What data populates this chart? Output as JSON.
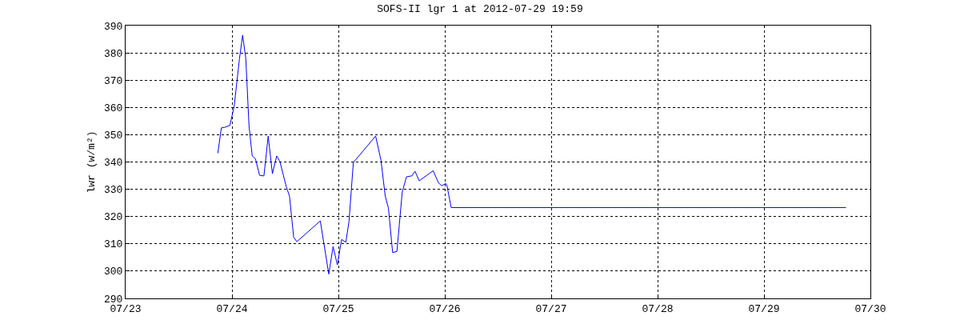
{
  "chart_data": {
    "type": "line",
    "title": "SOFS-II lgr 1 at 2012-07-29 19:59",
    "ylabel": "lwr (w/m²)",
    "x": [
      "2012-07-23T20:48",
      "2012-07-23T21:36",
      "2012-07-23T22:19",
      "2012-07-23T23:31",
      "2012-07-24T00:29",
      "2012-07-24T01:41",
      "2012-07-24T02:24",
      "2012-07-24T03:07",
      "2012-07-24T03:50",
      "2012-07-24T04:34",
      "2012-07-24T05:17",
      "2012-07-24T06:14",
      "2012-07-24T07:12",
      "2012-07-24T08:10",
      "2012-07-24T09:07",
      "2012-07-24T10:05",
      "2012-07-24T10:48",
      "2012-07-24T12:14",
      "2012-07-24T12:58",
      "2012-07-24T13:55",
      "2012-07-24T14:38",
      "2012-07-24T19:55",
      "2012-07-24T21:50",
      "2012-07-24T22:48",
      "2012-07-24T23:46",
      "2012-07-25T00:43",
      "2012-07-25T01:41",
      "2012-07-25T02:24",
      "2012-07-25T03:22",
      "2012-07-25T08:24",
      "2012-07-25T09:36",
      "2012-07-25T10:34",
      "2012-07-25T11:17",
      "2012-07-25T12:14",
      "2012-07-25T13:12",
      "2012-07-25T14:24",
      "2012-07-25T15:22",
      "2012-07-25T16:34",
      "2012-07-25T17:17",
      "2012-07-25T18:14",
      "2012-07-25T21:22",
      "2012-07-25T22:34",
      "2012-07-25T23:17",
      "2012-07-26T00:14",
      "2012-07-26T00:29",
      "2012-07-26T01:26",
      "2012-07-29T18:29"
    ],
    "series": [
      {
        "color": "#0000ff",
        "values": [
          343.2,
          352.5,
          352.7,
          353.4,
          360.3,
          377.9,
          386.5,
          377.9,
          353.4,
          342.2,
          341.2,
          335.1,
          334.9,
          349.5,
          335.7,
          342.2,
          340.2,
          331,
          327.5,
          312.4,
          310.8,
          318.4,
          298.9,
          309,
          302.3,
          311.6,
          310.6,
          318.3,
          339.8,
          349.5,
          340.7,
          327.5,
          323.1,
          306.8,
          307.2,
          329,
          334.6,
          334.9,
          336.6,
          333.1,
          336.8,
          332.4,
          331.3,
          332.1,
          331.4,
          323.3,
          323.3
        ]
      }
    ],
    "xlim": [
      "2012-07-23",
      "2012-07-30"
    ],
    "xticks": [
      {
        "value": "2012-07-23",
        "label": "07/23"
      },
      {
        "value": "2012-07-24",
        "label": "07/24"
      },
      {
        "value": "2012-07-25",
        "label": "07/25"
      },
      {
        "value": "2012-07-26",
        "label": "07/26"
      },
      {
        "value": "2012-07-27",
        "label": "07/27"
      },
      {
        "value": "2012-07-28",
        "label": "07/28"
      },
      {
        "value": "2012-07-29",
        "label": "07/29"
      },
      {
        "value": "2012-07-30",
        "label": "07/30"
      }
    ],
    "ylim": [
      290,
      390
    ],
    "yticks": [
      290,
      300,
      310,
      320,
      330,
      340,
      350,
      360,
      370,
      380,
      390
    ],
    "grid": true,
    "line_style": "solid"
  }
}
